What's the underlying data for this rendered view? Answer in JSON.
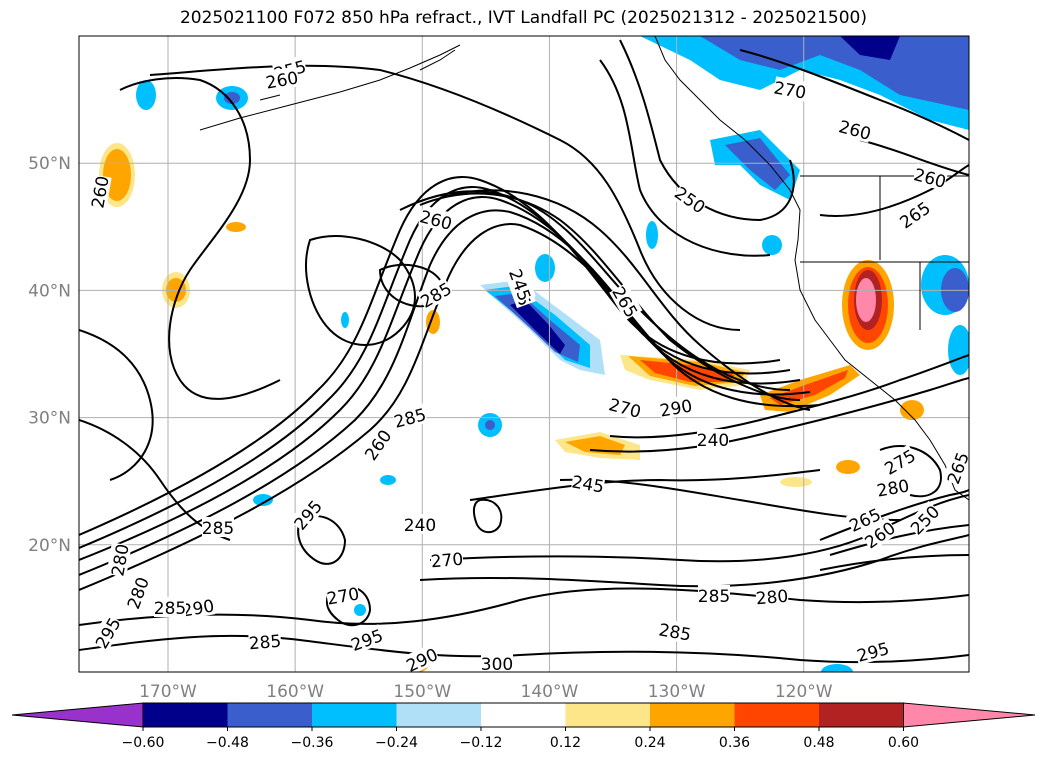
{
  "title": "2025021100 F072 850 hPa refract., IVT Landfall PC (2025021312 - 2025021500)",
  "map": {
    "lon_range": [
      -177,
      -107
    ],
    "lat_range": [
      10,
      60
    ],
    "lat_ticks": [
      {
        "value": 20,
        "label": "20°N"
      },
      {
        "value": 30,
        "label": "30°N"
      },
      {
        "value": 40,
        "label": "40°N"
      },
      {
        "value": 50,
        "label": "50°N"
      }
    ],
    "lon_ticks": [
      {
        "value": -170,
        "label": "170°W"
      },
      {
        "value": -160,
        "label": "160°W"
      },
      {
        "value": -150,
        "label": "150°W"
      },
      {
        "value": -140,
        "label": "140°W"
      },
      {
        "value": -130,
        "label": "130°W"
      },
      {
        "value": -120,
        "label": "120°W"
      }
    ],
    "gridlines": true,
    "contour_labels": [
      "255",
      "260",
      "260",
      "260",
      "250",
      "270",
      "260",
      "265",
      "285",
      "260",
      "255",
      "265",
      "285",
      "260",
      "285",
      "275",
      "295",
      "265",
      "290",
      "270",
      "240",
      "245",
      "280",
      "265",
      "260",
      "250",
      "245",
      "240",
      "270",
      "285",
      "270",
      "280",
      "285",
      "295",
      "290",
      "280",
      "285",
      "295",
      "280",
      "285",
      "300",
      "295",
      "290",
      "295"
    ],
    "colors": {
      "purple": "#9932cc",
      "navy": "#00008b",
      "royal": "#3a5fcd",
      "deepsky": "#00bfff",
      "lightblue": "#b0e0f8",
      "yellow": "#fde68a",
      "orange": "#ffa500",
      "orangered": "#ff4500",
      "firebrick": "#b22222",
      "pink": "#ff88aa"
    }
  },
  "colorbar": {
    "labels": [
      "−0.60",
      "−0.48",
      "−0.36",
      "−0.24",
      "−0.12",
      "0.12",
      "0.24",
      "0.36",
      "0.48",
      "0.60"
    ],
    "colors": [
      "#9932cc",
      "#00008b",
      "#3a5fcd",
      "#00bfff",
      "#b0e0f8",
      "#ffffff",
      "#fde68a",
      "#ffa500",
      "#ff4500",
      "#b22222",
      "#ff88aa"
    ]
  }
}
